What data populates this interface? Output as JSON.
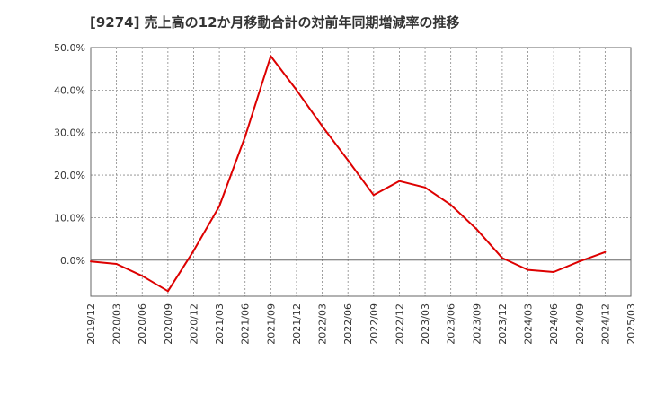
{
  "chart_data": {
    "type": "line",
    "title": "[9274]  売上高の12か月移動合計の対前年同期増減率の推移",
    "xlabel": "",
    "ylabel": "",
    "ylim": [
      -8.5,
      50
    ],
    "y_ticks": [
      0,
      10,
      20,
      30,
      40,
      50
    ],
    "y_tick_labels": [
      "0.0%",
      "10.0%",
      "20.0%",
      "30.0%",
      "40.0%",
      "50.0%"
    ],
    "categories": [
      "2019/12",
      "2020/03",
      "2020/06",
      "2020/09",
      "2020/12",
      "2021/03",
      "2021/06",
      "2021/09",
      "2021/12",
      "2022/03",
      "2022/06",
      "2022/09",
      "2022/12",
      "2023/03",
      "2023/06",
      "2023/09",
      "2023/12",
      "2024/03",
      "2024/06",
      "2024/09",
      "2024/12",
      "2025/03"
    ],
    "series": [
      {
        "name": "対前年同期増減率",
        "color": "#dd0000",
        "values": [
          -0.3,
          -0.9,
          -3.7,
          -7.3,
          2.2,
          12.7,
          29.0,
          48.0,
          40.0,
          31.5,
          23.5,
          15.3,
          18.6,
          17.1,
          13.0,
          7.3,
          0.5,
          -2.3,
          -2.8,
          -0.3,
          1.9,
          null
        ]
      }
    ],
    "grid": true,
    "zero_line": true
  },
  "colors": {
    "line": "#dd0000",
    "grid": "#888888",
    "axis": "#666666",
    "text": "#333333"
  }
}
